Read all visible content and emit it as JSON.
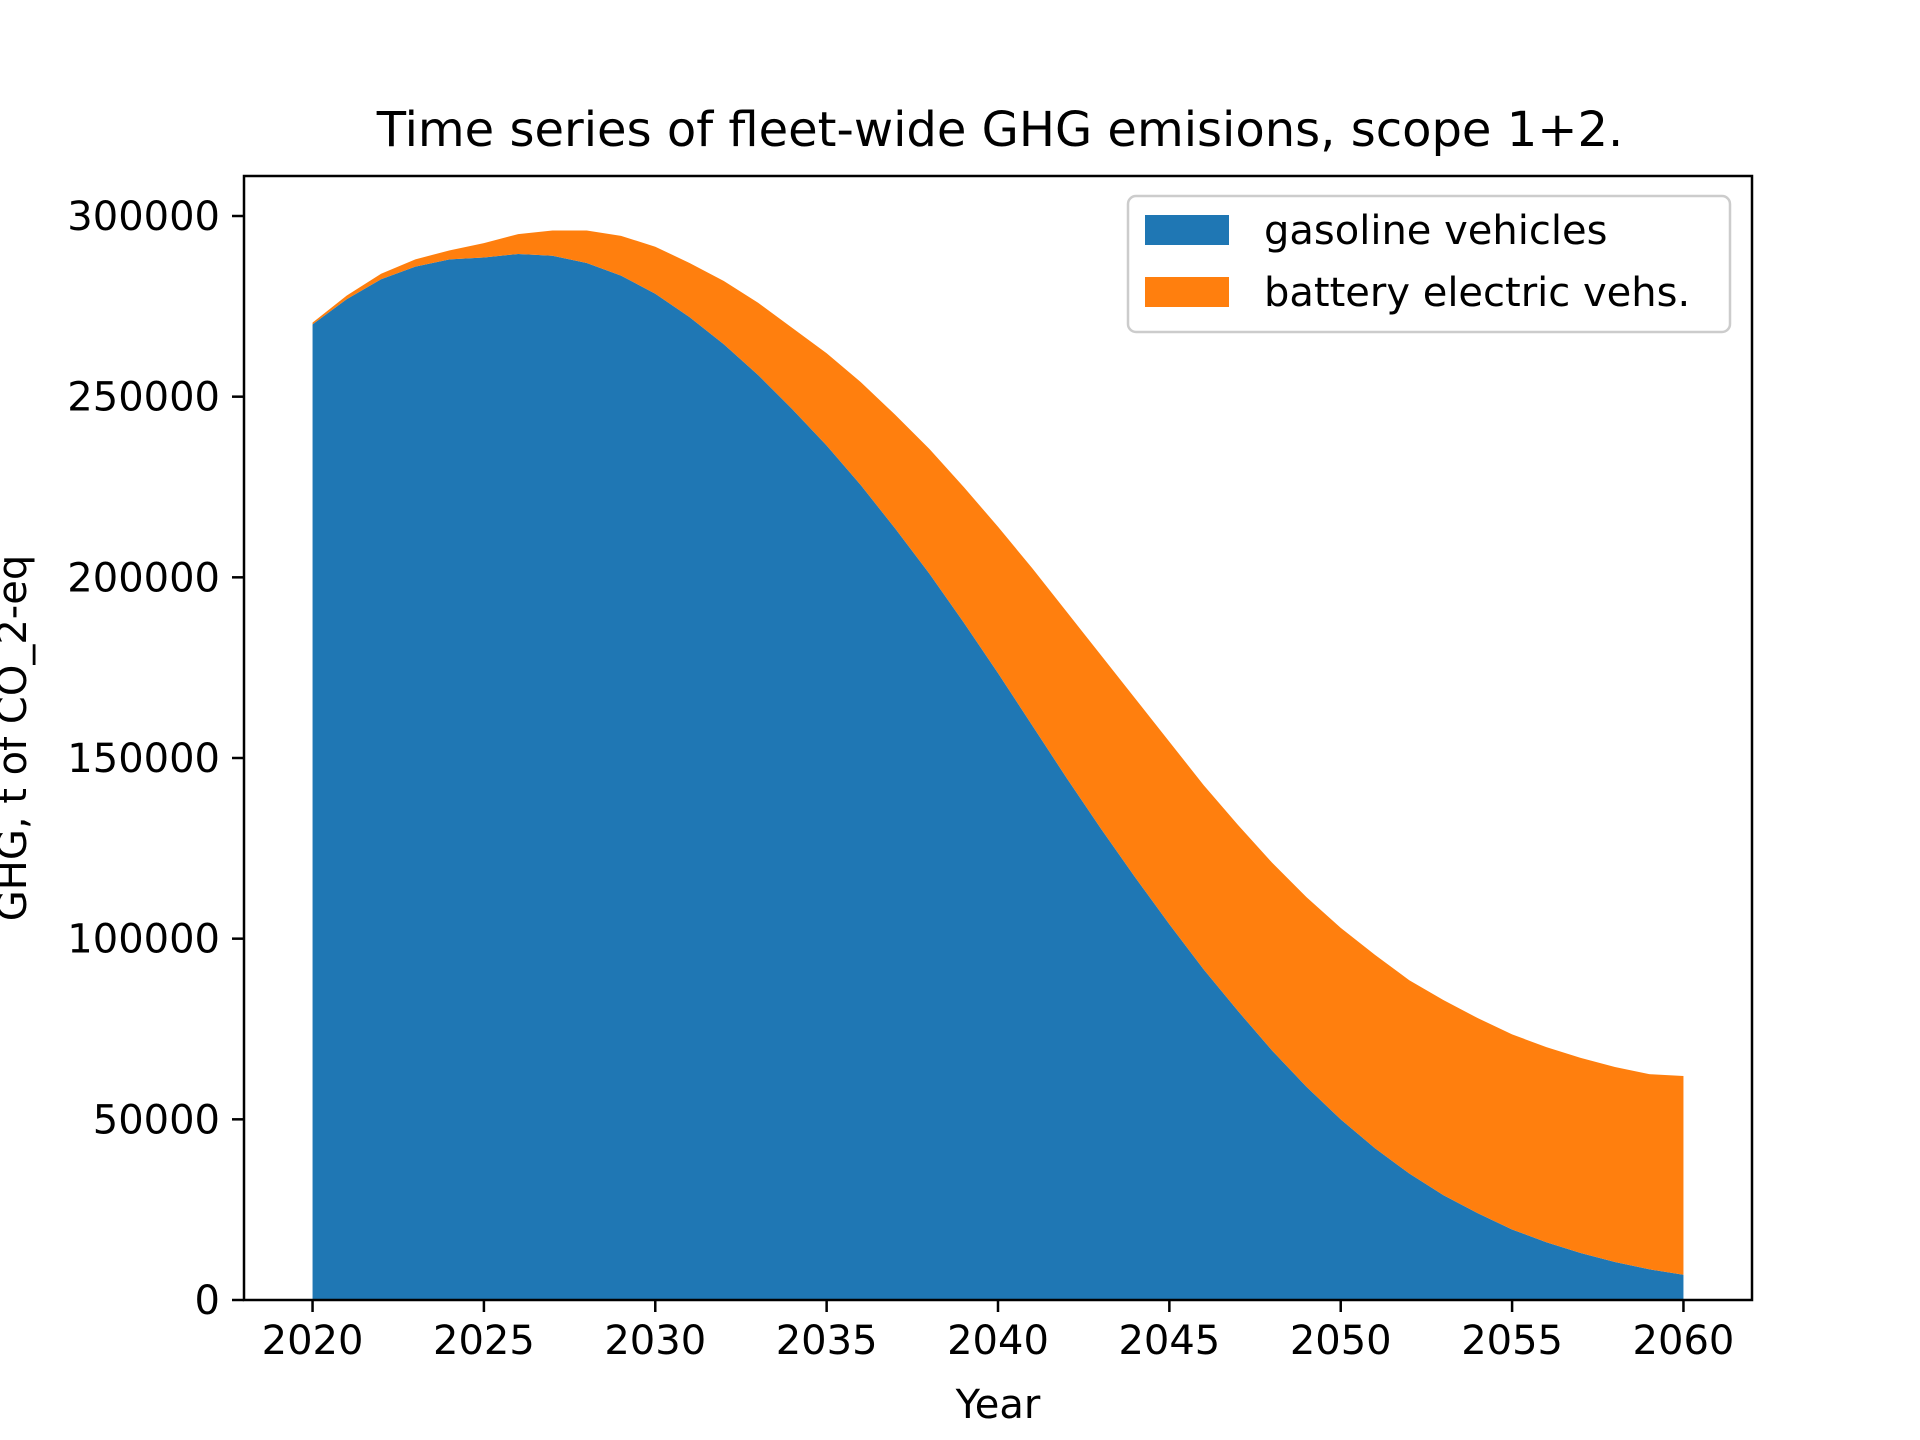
{
  "chart_data": {
    "type": "area",
    "stacked": true,
    "title": "Time series of fleet-wide GHG emisions, scope 1+2.",
    "xlabel": "Year",
    "ylabel": "GHG, t of CO_2-eq",
    "xlim": [
      2018,
      2062
    ],
    "ylim": [
      0,
      300000
    ],
    "xticks": [
      2020,
      2025,
      2030,
      2035,
      2040,
      2045,
      2050,
      2055,
      2060
    ],
    "yticks": [
      0,
      50000,
      100000,
      150000,
      200000,
      250000,
      300000
    ],
    "grid": false,
    "legend_position": "top-right",
    "x": [
      2020,
      2021,
      2022,
      2023,
      2024,
      2025,
      2026,
      2027,
      2028,
      2029,
      2030,
      2031,
      2032,
      2033,
      2034,
      2035,
      2036,
      2037,
      2038,
      2039,
      2040,
      2041,
      2042,
      2043,
      2044,
      2045,
      2046,
      2047,
      2048,
      2049,
      2050,
      2051,
      2052,
      2053,
      2054,
      2055,
      2056,
      2057,
      2058,
      2059,
      2060
    ],
    "series": [
      {
        "name": "gasoline vehicles",
        "color": "#1f77b4",
        "values": [
          270000,
          277000,
          282500,
          286000,
          288000,
          288500,
          289500,
          289000,
          287000,
          283500,
          278500,
          272000,
          264500,
          256000,
          246500,
          236500,
          225500,
          213500,
          201000,
          187500,
          173500,
          159000,
          144500,
          130500,
          117000,
          104000,
          91500,
          80000,
          69000,
          59000,
          50000,
          42000,
          35000,
          29000,
          24000,
          19500,
          16000,
          13000,
          10500,
          8500,
          7000
        ]
      },
      {
        "name": "battery electric vehs.",
        "color": "#ff7f0e",
        "values": [
          500,
          1000,
          1500,
          2000,
          2500,
          4000,
          5500,
          7000,
          9000,
          11000,
          13000,
          15000,
          17500,
          20000,
          22500,
          25500,
          28500,
          31500,
          34500,
          37500,
          40500,
          43500,
          46000,
          48000,
          49500,
          50500,
          51000,
          51500,
          52000,
          52500,
          53000,
          53500,
          53500,
          54000,
          54000,
          54000,
          54000,
          54000,
          54000,
          54000,
          55000
        ]
      }
    ]
  }
}
